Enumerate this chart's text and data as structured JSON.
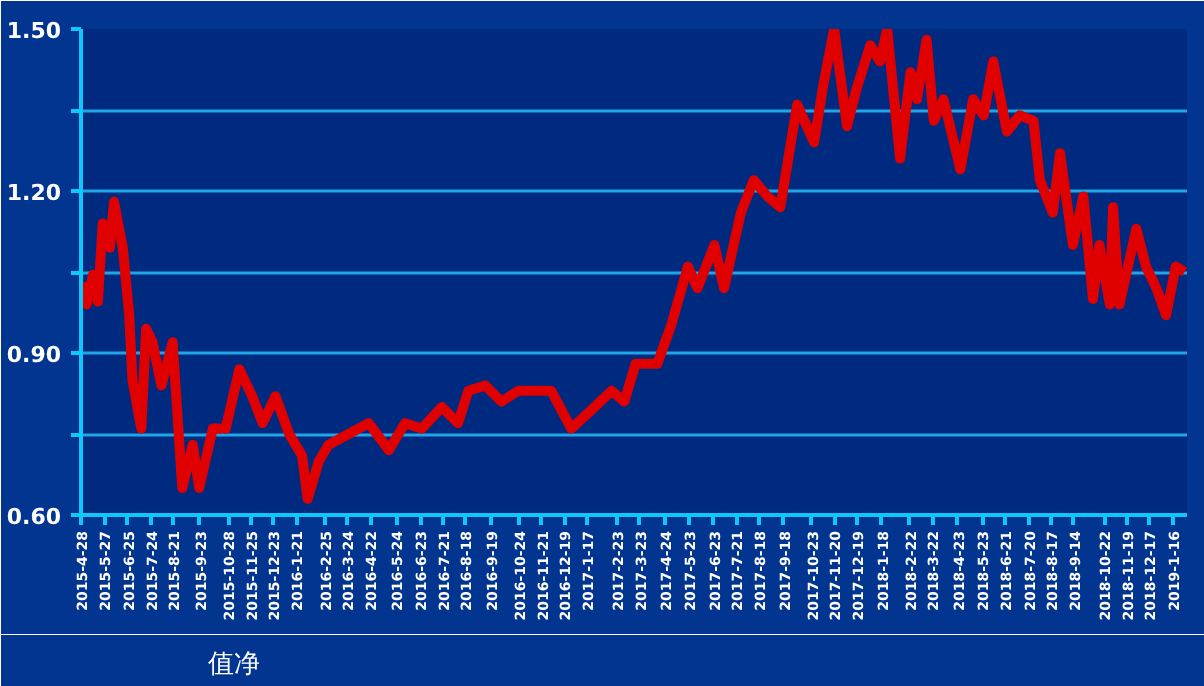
{
  "chart_data": {
    "type": "line",
    "x": [
      "2015-04-28",
      "2015-05-05",
      "2015-05-13",
      "2015-05-19",
      "2015-05-25",
      "2015-06-03",
      "2015-06-08",
      "2015-06-19",
      "2015-06-27",
      "2015-07-01",
      "2015-07-12",
      "2015-07-18",
      "2015-07-26",
      "2015-08-06",
      "2015-08-20",
      "2015-09-01",
      "2015-09-14",
      "2015-09-22",
      "2015-10-09",
      "2015-10-25",
      "2015-11-11",
      "2015-11-27",
      "2015-12-10",
      "2015-12-26",
      "2016-01-12",
      "2016-01-28",
      "2016-02-04",
      "2016-02-18",
      "2016-03-01",
      "2016-03-26",
      "2016-04-20",
      "2016-05-15",
      "2016-06-04",
      "2016-06-25",
      "2016-07-20",
      "2016-08-09",
      "2016-08-22",
      "2016-09-12",
      "2016-10-02",
      "2016-10-23",
      "2016-11-13",
      "2016-12-03",
      "2016-12-28",
      "2017-01-26",
      "2017-02-16",
      "2017-03-04",
      "2017-03-18",
      "2017-03-21",
      "2017-04-14",
      "2017-05-01",
      "2017-05-22",
      "2017-06-03",
      "2017-06-24",
      "2017-07-06",
      "2017-07-27",
      "2017-08-12",
      "2017-08-29",
      "2017-09-14",
      "2017-10-05",
      "2017-10-26",
      "2017-11-07",
      "2017-11-20",
      "2017-12-06",
      "2017-12-18",
      "2018-01-04",
      "2018-01-16",
      "2018-01-25",
      "2018-02-10",
      "2018-02-23",
      "2018-03-03",
      "2018-03-15",
      "2018-03-24",
      "2018-04-05",
      "2018-04-18",
      "2018-04-26",
      "2018-05-12",
      "2018-05-25",
      "2018-06-06",
      "2018-06-23",
      "2018-07-09",
      "2018-07-26",
      "2018-08-03",
      "2018-08-19",
      "2018-08-28",
      "2018-09-13",
      "2018-09-26",
      "2018-10-08",
      "2018-10-16",
      "2018-10-29",
      "2018-11-02",
      "2018-11-10",
      "2018-12-01",
      "2018-12-13",
      "2018-12-26",
      "2019-01-07",
      "2019-01-19",
      "2019-01-30"
    ],
    "series": [
      {
        "name": "值净",
        "color": "#e00000",
        "values": [
          1.03,
          0.99,
          1.045,
          0.995,
          1.14,
          1.095,
          1.18,
          1.095,
          0.97,
          0.85,
          0.76,
          0.945,
          0.92,
          0.84,
          0.92,
          0.65,
          0.73,
          0.65,
          0.76,
          0.76,
          0.87,
          0.82,
          0.77,
          0.82,
          0.75,
          0.71,
          0.63,
          0.7,
          0.73,
          0.75,
          0.77,
          0.72,
          0.77,
          0.76,
          0.8,
          0.77,
          0.83,
          0.84,
          0.81,
          0.83,
          0.83,
          0.83,
          0.76,
          0.8,
          0.83,
          0.81,
          0.88,
          0.88,
          0.88,
          0.95,
          1.06,
          1.02,
          1.1,
          1.02,
          1.16,
          1.22,
          1.19,
          1.17,
          1.36,
          1.29,
          1.4,
          1.5,
          1.32,
          1.39,
          1.47,
          1.44,
          1.5,
          1.26,
          1.42,
          1.37,
          1.48,
          1.33,
          1.37,
          1.29,
          1.24,
          1.37,
          1.34,
          1.44,
          1.31,
          1.34,
          1.33,
          1.22,
          1.16,
          1.27,
          1.1,
          1.19,
          1.0,
          1.1,
          0.99,
          1.17,
          0.99,
          1.13,
          1.06,
          1.02,
          0.97,
          1.06,
          1.05
        ]
      }
    ],
    "xlim": [
      "2015-04-28",
      "2019-02-02"
    ],
    "xticks": [
      {
        "value": "2015-04-28",
        "label": "2015-4-28"
      },
      {
        "value": "2015-05-27",
        "label": "2015-5-27"
      },
      {
        "value": "2015-06-25",
        "label": "2015-6-25"
      },
      {
        "value": "2015-07-24",
        "label": "2015-7-24"
      },
      {
        "value": "2015-08-21",
        "label": "2015-8-21"
      },
      {
        "value": "2015-09-23",
        "label": "2015-9-23"
      },
      {
        "value": "2015-10-28",
        "label": "2015-10-28"
      },
      {
        "value": "2015-11-25",
        "label": "2015-11-25"
      },
      {
        "value": "2015-12-23",
        "label": "2015-12-23"
      },
      {
        "value": "2016-01-21",
        "label": "2016-1-21"
      },
      {
        "value": "2016-02-25",
        "label": "2016-2-25"
      },
      {
        "value": "2016-03-24",
        "label": "2016-3-24"
      },
      {
        "value": "2016-04-22",
        "label": "2016-4-22"
      },
      {
        "value": "2016-05-24",
        "label": "2016-5-24"
      },
      {
        "value": "2016-06-23",
        "label": "2016-6-23"
      },
      {
        "value": "2016-07-21",
        "label": "2016-7-21"
      },
      {
        "value": "2016-08-18",
        "label": "2016-8-18"
      },
      {
        "value": "2016-09-19",
        "label": "2016-9-19"
      },
      {
        "value": "2016-10-24",
        "label": "2016-10-24"
      },
      {
        "value": "2016-11-21",
        "label": "2016-11-21"
      },
      {
        "value": "2016-12-19",
        "label": "2016-12-19"
      },
      {
        "value": "2017-01-17",
        "label": "2017-1-17"
      },
      {
        "value": "2017-02-23",
        "label": "2017-2-23"
      },
      {
        "value": "2017-03-23",
        "label": "2017-3-23"
      },
      {
        "value": "2017-04-24",
        "label": "2017-4-24"
      },
      {
        "value": "2017-05-23",
        "label": "2017-5-23"
      },
      {
        "value": "2017-06-23",
        "label": "2017-6-23"
      },
      {
        "value": "2017-07-21",
        "label": "2017-7-21"
      },
      {
        "value": "2017-08-18",
        "label": "2017-8-18"
      },
      {
        "value": "2017-09-18",
        "label": "2017-9-18"
      },
      {
        "value": "2017-10-23",
        "label": "2017-10-23"
      },
      {
        "value": "2017-11-20",
        "label": "2017-11-20"
      },
      {
        "value": "2017-12-19",
        "label": "2017-12-19"
      },
      {
        "value": "2018-01-18",
        "label": "2018-1-18"
      },
      {
        "value": "2018-02-22",
        "label": "2018-2-22"
      },
      {
        "value": "2018-03-22",
        "label": "2018-3-22"
      },
      {
        "value": "2018-04-23",
        "label": "2018-4-23"
      },
      {
        "value": "2018-05-23",
        "label": "2018-5-23"
      },
      {
        "value": "2018-06-21",
        "label": "2018-6-21"
      },
      {
        "value": "2018-07-20",
        "label": "2018-7-20"
      },
      {
        "value": "2018-08-17",
        "label": "2018-8-17"
      },
      {
        "value": "2018-09-14",
        "label": "2018-9-14"
      },
      {
        "value": "2018-10-22",
        "label": "2018-10-22"
      },
      {
        "value": "2018-11-19",
        "label": "2018-11-19"
      },
      {
        "value": "2018-12-17",
        "label": "2018-12-17"
      },
      {
        "value": "2019-01-16",
        "label": "2019-1-16"
      }
    ],
    "ylim": [
      0.6,
      1.5
    ],
    "yticks": [
      {
        "value": 0.6,
        "label": "0.60"
      },
      {
        "value": 0.75,
        "label": null
      },
      {
        "value": 0.9,
        "label": "0.90"
      },
      {
        "value": 1.05,
        "label": null
      },
      {
        "value": 1.2,
        "label": "1.20"
      },
      {
        "value": 1.35,
        "label": null
      },
      {
        "value": 1.5,
        "label": "1.50"
      }
    ],
    "grid": "y",
    "legend": "bottom left",
    "marker": "none",
    "line_style": "solid"
  }
}
